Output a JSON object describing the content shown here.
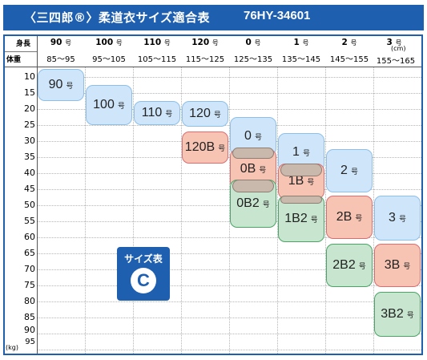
{
  "title": {
    "text": "〈三四郎®〉柔道衣サイズ適合表",
    "model": "76HY-34601"
  },
  "header": {
    "height_label": "身長",
    "weight_label": "体重",
    "unit_cm": "(cm)",
    "unit_kg": "(kg)",
    "columns": [
      {
        "size": "90",
        "gou": "号",
        "range": "85〜95"
      },
      {
        "size": "100",
        "gou": "号",
        "range": "95〜105"
      },
      {
        "size": "110",
        "gou": "号",
        "range": "105〜115"
      },
      {
        "size": "120",
        "gou": "号",
        "range": "115〜125"
      },
      {
        "size": "0",
        "gou": "号",
        "range": "125〜135"
      },
      {
        "size": "1",
        "gou": "号",
        "range": "135〜145"
      },
      {
        "size": "2",
        "gou": "号",
        "range": "145〜155"
      },
      {
        "size": "3",
        "gou": "号",
        "range": "155〜165"
      }
    ]
  },
  "weights": [
    "10",
    "15",
    "20",
    "25",
    "30",
    "35",
    "40",
    "45",
    "50",
    "55",
    "60",
    "65",
    "70",
    "75",
    "80",
    "85",
    "90",
    "95"
  ],
  "sizes": [
    {
      "label": "90",
      "gou": "号",
      "type": "standard"
    },
    {
      "label": "100",
      "gou": "号",
      "type": "standard"
    },
    {
      "label": "110",
      "gou": "号",
      "type": "standard"
    },
    {
      "label": "120",
      "gou": "号",
      "type": "standard"
    },
    {
      "label": "120B",
      "gou": "号",
      "type": "B"
    },
    {
      "label": "0",
      "gou": "号",
      "type": "standard"
    },
    {
      "label": "0B",
      "gou": "号",
      "type": "B"
    },
    {
      "label": "0B2",
      "gou": "号",
      "type": "B2"
    },
    {
      "label": "1",
      "gou": "号",
      "type": "standard"
    },
    {
      "label": "1B",
      "gou": "号",
      "type": "B"
    },
    {
      "label": "1B2",
      "gou": "号",
      "type": "B2"
    },
    {
      "label": "2",
      "gou": "号",
      "type": "standard"
    },
    {
      "label": "2B",
      "gou": "号",
      "type": "B"
    },
    {
      "label": "2B2",
      "gou": "号",
      "type": "B2"
    },
    {
      "label": "3",
      "gou": "号",
      "type": "standard"
    },
    {
      "label": "3B",
      "gou": "号",
      "type": "B"
    },
    {
      "label": "3B2",
      "gou": "号",
      "type": "B2"
    }
  ],
  "badge": {
    "label": "サイズ表",
    "letter": "C"
  },
  "colors": {
    "title_bar": "#1f5fb0",
    "standard": "#cfe6fa",
    "B": "#f7c4b4",
    "B2": "#c8e6cf",
    "overlap": "#c9b8ac"
  }
}
